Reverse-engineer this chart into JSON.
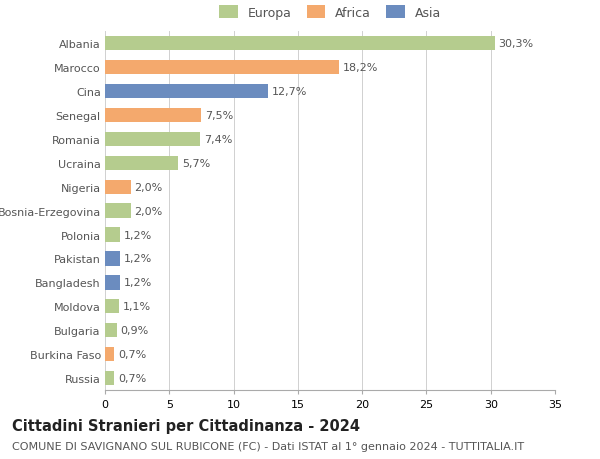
{
  "countries": [
    "Albania",
    "Marocco",
    "Cina",
    "Senegal",
    "Romania",
    "Ucraina",
    "Nigeria",
    "Bosnia-Erzegovina",
    "Polonia",
    "Pakistan",
    "Bangladesh",
    "Moldova",
    "Bulgaria",
    "Burkina Faso",
    "Russia"
  ],
  "values": [
    30.3,
    18.2,
    12.7,
    7.5,
    7.4,
    5.7,
    2.0,
    2.0,
    1.2,
    1.2,
    1.2,
    1.1,
    0.9,
    0.7,
    0.7
  ],
  "labels": [
    "30,3%",
    "18,2%",
    "12,7%",
    "7,5%",
    "7,4%",
    "5,7%",
    "2,0%",
    "2,0%",
    "1,2%",
    "1,2%",
    "1,2%",
    "1,1%",
    "0,9%",
    "0,7%",
    "0,7%"
  ],
  "continents": [
    "Europa",
    "Africa",
    "Asia",
    "Africa",
    "Europa",
    "Europa",
    "Africa",
    "Europa",
    "Europa",
    "Asia",
    "Asia",
    "Europa",
    "Europa",
    "Africa",
    "Europa"
  ],
  "colors": {
    "Europa": "#b5cc8e",
    "Africa": "#f4a96d",
    "Asia": "#6b8cbf"
  },
  "bg_color": "#ffffff",
  "grid_color": "#d0d0d0",
  "title": "Cittadini Stranieri per Cittadinanza - 2024",
  "subtitle": "COMUNE DI SAVIGNANO SUL RUBICONE (FC) - Dati ISTAT al 1° gennaio 2024 - TUTTITALIA.IT",
  "xlim": [
    0,
    35
  ],
  "xticks": [
    0,
    5,
    10,
    15,
    20,
    25,
    30,
    35
  ],
  "bar_height": 0.6,
  "label_fontsize": 8,
  "tick_fontsize": 8,
  "title_fontsize": 10.5,
  "subtitle_fontsize": 8
}
